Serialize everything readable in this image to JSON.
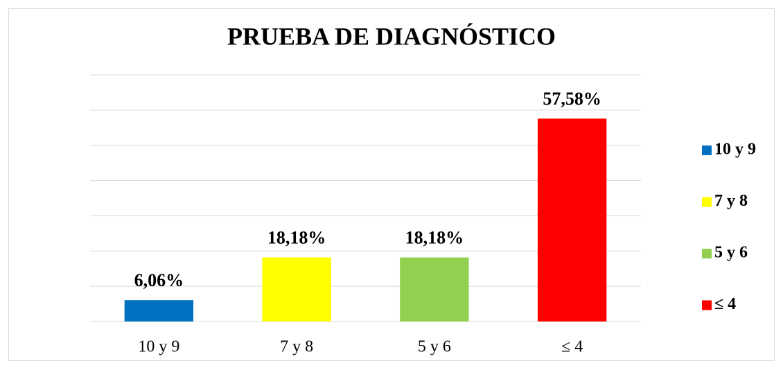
{
  "chart_data": {
    "type": "bar",
    "title": "PRUEBA DE DIAGNÓSTICO",
    "categories": [
      "10 y 9",
      "7 y 8",
      "5 y 6",
      "≤ 4"
    ],
    "values": [
      6.06,
      18.18,
      18.18,
      57.58
    ],
    "value_labels": [
      "6,06%",
      "18,18%",
      "18,18%",
      "57,58%"
    ],
    "colors": [
      "#0070c0",
      "#ffff00",
      "#92d050",
      "#ff0000"
    ],
    "ylim": [
      0,
      70
    ],
    "yticks": [
      0,
      10,
      20,
      30,
      40,
      50,
      60,
      70
    ],
    "grid": true,
    "legend": "right"
  }
}
